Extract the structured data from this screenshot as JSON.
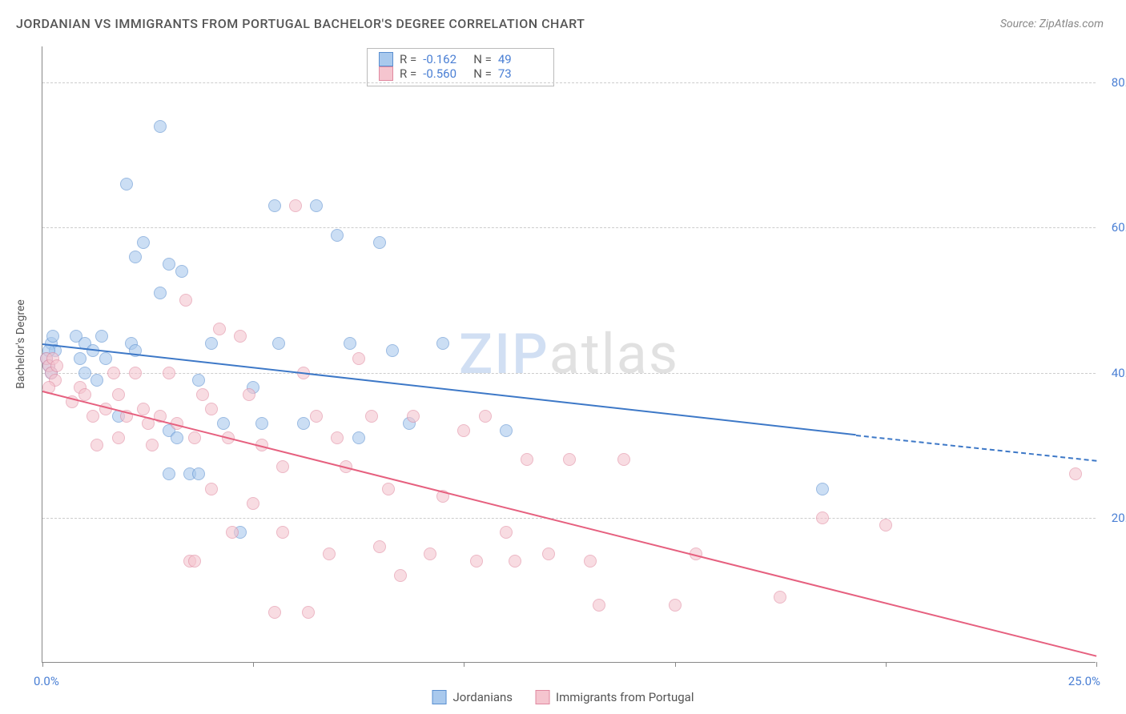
{
  "title": "JORDANIAN VS IMMIGRANTS FROM PORTUGAL BACHELOR'S DEGREE CORRELATION CHART",
  "source": "Source: ZipAtlas.com",
  "watermark": {
    "zip": "ZIP",
    "atlas": "atlas"
  },
  "chart": {
    "type": "scatter",
    "background_color": "#ffffff",
    "grid_color": "#cccccc",
    "axis_color": "#888888",
    "y_axis_title": "Bachelor's Degree",
    "y_axis_side": "right",
    "xlim": [
      0,
      25
    ],
    "ylim": [
      0,
      85
    ],
    "x_ticks": [
      0,
      5,
      10,
      15,
      20,
      25
    ],
    "x_tick_labels": [
      "0.0%",
      "25.0%"
    ],
    "y_ticks": [
      20,
      40,
      60,
      80
    ],
    "y_tick_labels": [
      "20.0%",
      "40.0%",
      "60.0%",
      "80.0%"
    ],
    "tick_label_color": "#4a7fd4",
    "marker_radius": 8,
    "marker_opacity": 0.6,
    "series": [
      {
        "name": "Jordanians",
        "fill_color": "#a9c9ed",
        "stroke_color": "#5a8fd0",
        "line_color": "#3d78c7",
        "R": "-0.162",
        "N": "49",
        "regression": {
          "x1": 0,
          "y1": 44.0,
          "x2": 19.3,
          "y2": 31.5,
          "x2_dash": 25,
          "y2_dash": 28.0
        },
        "points": [
          [
            0.1,
            42
          ],
          [
            0.2,
            44
          ],
          [
            0.15,
            41
          ],
          [
            0.2,
            40
          ],
          [
            0.3,
            43
          ],
          [
            0.25,
            45
          ],
          [
            0.15,
            43
          ],
          [
            0.8,
            45
          ],
          [
            0.9,
            42
          ],
          [
            1.0,
            44
          ],
          [
            1.0,
            40
          ],
          [
            1.2,
            43
          ],
          [
            1.3,
            39
          ],
          [
            1.4,
            45
          ],
          [
            1.5,
            42
          ],
          [
            1.8,
            34
          ],
          [
            2.0,
            66
          ],
          [
            2.1,
            44
          ],
          [
            2.2,
            56
          ],
          [
            2.2,
            43
          ],
          [
            2.4,
            58
          ],
          [
            2.8,
            51
          ],
          [
            2.8,
            74
          ],
          [
            3.0,
            32
          ],
          [
            3.0,
            55
          ],
          [
            3.0,
            26
          ],
          [
            3.2,
            31
          ],
          [
            3.3,
            54
          ],
          [
            3.5,
            26
          ],
          [
            3.7,
            39
          ],
          [
            3.7,
            26
          ],
          [
            4.0,
            44
          ],
          [
            4.3,
            33
          ],
          [
            4.7,
            18
          ],
          [
            5.0,
            38
          ],
          [
            5.2,
            33
          ],
          [
            5.5,
            63
          ],
          [
            5.6,
            44
          ],
          [
            6.2,
            33
          ],
          [
            6.5,
            63
          ],
          [
            7.0,
            59
          ],
          [
            7.3,
            44
          ],
          [
            7.5,
            31
          ],
          [
            8.0,
            58
          ],
          [
            8.3,
            43
          ],
          [
            8.7,
            33
          ],
          [
            9.5,
            44
          ],
          [
            11.0,
            32
          ],
          [
            18.5,
            24
          ]
        ]
      },
      {
        "name": "Immigrants from Portugal",
        "fill_color": "#f5c5cf",
        "stroke_color": "#e089a0",
        "line_color": "#e6607f",
        "R": "-0.560",
        "N": "73",
        "regression": {
          "x1": 0,
          "y1": 37.5,
          "x2": 25,
          "y2": 1.0
        },
        "points": [
          [
            0.1,
            42
          ],
          [
            0.15,
            41
          ],
          [
            0.2,
            40
          ],
          [
            0.25,
            42
          ],
          [
            0.3,
            39
          ],
          [
            0.35,
            41
          ],
          [
            0.15,
            38
          ],
          [
            0.7,
            36
          ],
          [
            0.9,
            38
          ],
          [
            1.0,
            37
          ],
          [
            1.2,
            34
          ],
          [
            1.3,
            30
          ],
          [
            1.5,
            35
          ],
          [
            1.7,
            40
          ],
          [
            1.8,
            37
          ],
          [
            1.8,
            31
          ],
          [
            2.0,
            34
          ],
          [
            2.2,
            40
          ],
          [
            2.4,
            35
          ],
          [
            2.5,
            33
          ],
          [
            2.6,
            30
          ],
          [
            2.8,
            34
          ],
          [
            3.0,
            40
          ],
          [
            3.2,
            33
          ],
          [
            3.4,
            50
          ],
          [
            3.5,
            14
          ],
          [
            3.6,
            31
          ],
          [
            3.6,
            14
          ],
          [
            3.8,
            37
          ],
          [
            4.0,
            35
          ],
          [
            4.0,
            24
          ],
          [
            4.2,
            46
          ],
          [
            4.4,
            31
          ],
          [
            4.5,
            18
          ],
          [
            4.7,
            45
          ],
          [
            4.9,
            37
          ],
          [
            5.0,
            22
          ],
          [
            5.2,
            30
          ],
          [
            5.5,
            7
          ],
          [
            5.7,
            27
          ],
          [
            5.7,
            18
          ],
          [
            6.0,
            63
          ],
          [
            6.2,
            40
          ],
          [
            6.3,
            7
          ],
          [
            6.5,
            34
          ],
          [
            6.8,
            15
          ],
          [
            7.0,
            31
          ],
          [
            7.2,
            27
          ],
          [
            7.5,
            42
          ],
          [
            7.8,
            34
          ],
          [
            8.0,
            16
          ],
          [
            8.2,
            24
          ],
          [
            8.5,
            12
          ],
          [
            8.8,
            34
          ],
          [
            9.2,
            15
          ],
          [
            9.5,
            23
          ],
          [
            10.0,
            32
          ],
          [
            10.3,
            14
          ],
          [
            10.5,
            34
          ],
          [
            11.0,
            18
          ],
          [
            11.2,
            14
          ],
          [
            11.5,
            28
          ],
          [
            12.0,
            15
          ],
          [
            12.5,
            28
          ],
          [
            13.0,
            14
          ],
          [
            13.2,
            8
          ],
          [
            13.8,
            28
          ],
          [
            15.0,
            8
          ],
          [
            15.5,
            15
          ],
          [
            17.5,
            9
          ],
          [
            18.5,
            20
          ],
          [
            20.0,
            19
          ],
          [
            24.5,
            26
          ]
        ]
      }
    ]
  },
  "stats_box": {
    "label_R": "R =",
    "label_N": "N ="
  },
  "bottom_legend": {
    "series1": "Jordanians",
    "series2": "Immigrants from Portugal"
  }
}
